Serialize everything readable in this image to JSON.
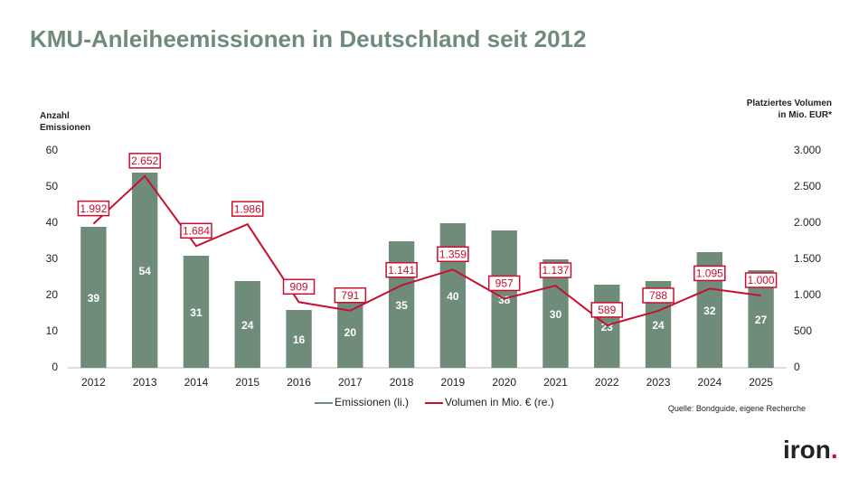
{
  "chart_data": {
    "type": "bar",
    "title": "KMU-Anleiheemissionen in Deutschland seit 2012",
    "y_label": "Anzahl Emissionen",
    "y2_label": "Platziertes Volumen in Mio. EUR*",
    "source": "Quelle: Bondguide, eigene Recherche",
    "logo": "iron.",
    "categories": [
      "2012",
      "2013",
      "2014",
      "2015",
      "2016",
      "2017",
      "2018",
      "2019",
      "2020",
      "2021",
      "2022",
      "2023",
      "2024",
      "2025"
    ],
    "series": [
      {
        "name": "Emissionen (li.)",
        "type": "bar",
        "color": "#6f8c7b",
        "values": [
          39,
          54,
          31,
          24,
          16,
          20,
          35,
          40,
          38,
          30,
          23,
          24,
          32,
          27
        ]
      },
      {
        "name": "Volumen in Mio. € (re.)",
        "type": "line",
        "axis": "y2",
        "color": "#c8102e",
        "values": [
          1992,
          2652,
          1684,
          1986,
          909,
          791,
          1141,
          1359,
          957,
          1137,
          589,
          788,
          1095,
          1000
        ],
        "value_labels": [
          "1.992",
          "2.652",
          "1.684",
          "1.986",
          "909",
          "791",
          "1.141",
          "1.359",
          "957",
          "1.137",
          "589",
          "788",
          "1.095",
          "1.000"
        ]
      }
    ],
    "ylim": [
      0,
      60
    ],
    "yticks": [
      0,
      10,
      20,
      30,
      40,
      50,
      60
    ],
    "y2lim": [
      0,
      3000
    ],
    "y2ticks": [
      0,
      500,
      {
        "value": 1000,
        "label": "1.000"
      },
      {
        "value": 1500,
        "label": "1.500"
      },
      {
        "value": 2000,
        "label": "2.000"
      },
      {
        "value": 2500,
        "label": "2.500"
      },
      {
        "value": 3000,
        "label": "3.000"
      }
    ],
    "grid": false
  }
}
